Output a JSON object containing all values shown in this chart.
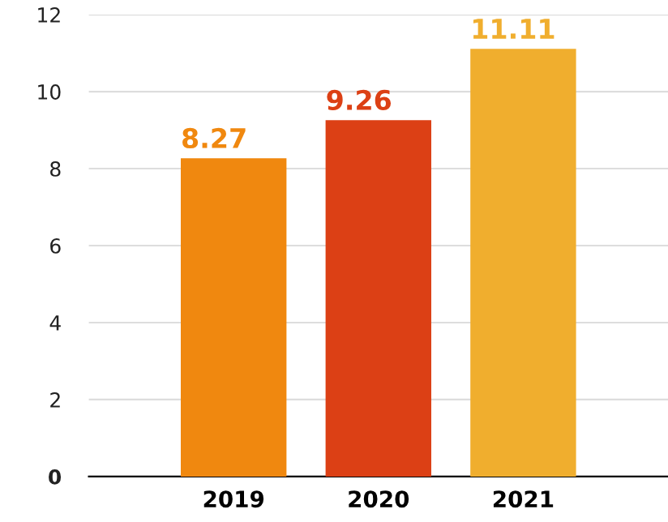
{
  "chart_data": {
    "type": "bar",
    "categories": [
      "2019",
      "2020",
      "2021"
    ],
    "values": [
      8.27,
      9.26,
      11.11
    ],
    "colors": [
      "#f0880f",
      "#dc4015",
      "#f0ae2e"
    ],
    "ylim": [
      0,
      12
    ],
    "yticks": [
      0,
      2,
      4,
      6,
      8,
      10,
      12
    ],
    "grid": "y",
    "data_labels": true
  }
}
